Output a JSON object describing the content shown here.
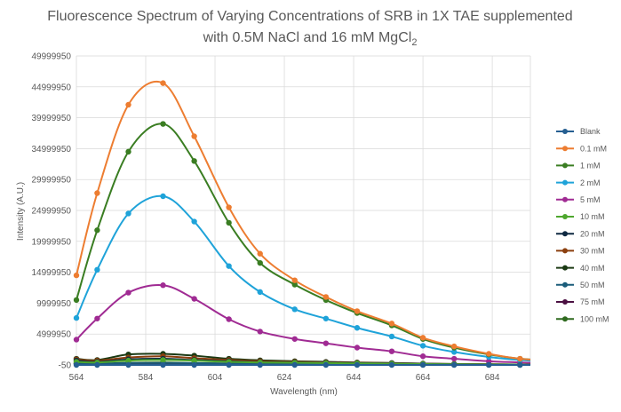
{
  "chart_data": {
    "type": "line",
    "title_line1": "Fluorescence Spectrum of Varying Concentrations of SRB in 1X TAE supplemented",
    "title_line2_prefix": "with 0.5M NaCl and 16 mM MgCl",
    "title_line2_subscript": "2",
    "xlabel": "Wavelength (nm)",
    "ylabel": "Intensity (A.U.)",
    "xlim": [
      564,
      695
    ],
    "ylim": [
      -50,
      49999950
    ],
    "x_ticks": [
      "564",
      "584",
      "604",
      "624",
      "644",
      "664",
      "684"
    ],
    "y_ticks": [
      "-50",
      "4999950",
      "9999950",
      "14999950",
      "19999950",
      "24999950",
      "29999950",
      "34999950",
      "39999950",
      "44999950",
      "49999950"
    ],
    "grid": true,
    "legend_position": "right",
    "x": [
      564,
      570,
      579,
      589,
      598,
      608,
      617,
      627,
      636,
      645,
      655,
      664,
      673,
      683,
      692,
      701
    ],
    "series": [
      {
        "name": "Blank",
        "color": "#255e91",
        "values": [
          0,
          0,
          0,
          0,
          0,
          0,
          0,
          0,
          0,
          0,
          0,
          0,
          0,
          0,
          0,
          0
        ]
      },
      {
        "name": "0.1 mM",
        "color": "#ed7d31",
        "values": [
          14500000,
          27800000,
          42100000,
          45600000,
          37000000,
          25500000,
          18000000,
          13700000,
          11000000,
          8700000,
          6700000,
          4400000,
          3000000,
          1800000,
          1000000,
          700000
        ]
      },
      {
        "name": "1 mM",
        "color": "#3a7d22",
        "values": [
          10500000,
          21800000,
          34500000,
          39000000,
          33000000,
          23000000,
          16500000,
          13000000,
          10500000,
          8400000,
          6400000,
          4200000,
          2800000,
          1700000,
          1000000,
          700000
        ]
      },
      {
        "name": "2 mM",
        "color": "#1fa3d9",
        "values": [
          7600000,
          15400000,
          24500000,
          27300000,
          23200000,
          16000000,
          11800000,
          9000000,
          7500000,
          6000000,
          4600000,
          3100000,
          2100000,
          1300000,
          800000,
          500000
        ]
      },
      {
        "name": "5 mM",
        "color": "#a02b93",
        "values": [
          4100000,
          7500000,
          11700000,
          12900000,
          10700000,
          7400000,
          5400000,
          4200000,
          3500000,
          2800000,
          2200000,
          1400000,
          1000000,
          600000,
          400000,
          200000
        ]
      },
      {
        "name": "10 mM",
        "color": "#4ea72e",
        "values": [
          500000,
          400000,
          700000,
          800000,
          700000,
          500000,
          400000,
          350000,
          300000,
          250000,
          200000,
          150000,
          100000,
          80000,
          50000,
          30000
        ]
      },
      {
        "name": "20 mM",
        "color": "#0e2841",
        "values": [
          700000,
          500000,
          900000,
          1000000,
          800000,
          600000,
          450000,
          400000,
          350000,
          300000,
          250000,
          180000,
          120000,
          90000,
          60000,
          40000
        ]
      },
      {
        "name": "30 mM",
        "color": "#8b3f0e",
        "values": [
          900000,
          700000,
          1200000,
          1400000,
          1100000,
          800000,
          600000,
          500000,
          420000,
          350000,
          280000,
          200000,
          140000,
          100000,
          70000,
          40000
        ]
      },
      {
        "name": "40 mM",
        "color": "#1b3a14",
        "values": [
          1000000,
          800000,
          1700000,
          1800000,
          1500000,
          1000000,
          750000,
          600000,
          500000,
          400000,
          320000,
          220000,
          160000,
          110000,
          80000,
          50000
        ]
      },
      {
        "name": "50 mM",
        "color": "#1a5c7a",
        "values": [
          300000,
          200000,
          300000,
          300000,
          300000,
          200000,
          200000,
          150000,
          120000,
          100000,
          80000,
          60000,
          40000,
          30000,
          20000,
          10000
        ]
      },
      {
        "name": "75 mM",
        "color": "#4b1042",
        "values": [
          200000,
          100000,
          200000,
          200000,
          200000,
          150000,
          120000,
          100000,
          80000,
          60000,
          50000,
          40000,
          30000,
          20000,
          10000,
          5000
        ]
      },
      {
        "name": "100 mM",
        "color": "#2f6a1f",
        "values": [
          300000,
          200000,
          350000,
          400000,
          300000,
          250000,
          200000,
          150000,
          120000,
          100000,
          80000,
          60000,
          40000,
          30000,
          20000,
          10000
        ]
      }
    ]
  }
}
